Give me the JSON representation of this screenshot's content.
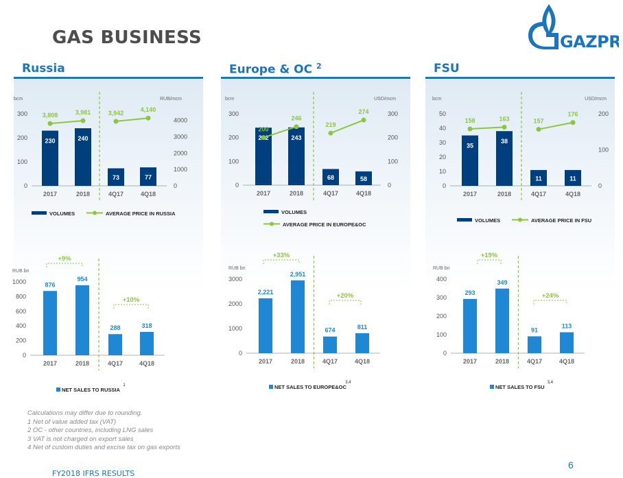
{
  "page": {
    "title": "GAS BUSINESS",
    "logo_text": "GAZPROM",
    "page_number": "6",
    "footer_title": "FY2018 IFRS RESULTS",
    "notes": [
      "Calculations may differ due to rounding.",
      "1 Net of value added tax (VAT)",
      "2 OC - other countries, including LNG sales",
      "3 VAT is not charged on export sales",
      "4 Net of custom duties and excise tax on gas exports"
    ]
  },
  "colors": {
    "accent": "#1a75bc",
    "dark_bar": "#003f7d",
    "light_bar": "#1f87d4",
    "green": "#8cc63f"
  },
  "sections": [
    {
      "header": "Russia",
      "header_sup": ""
    },
    {
      "header": "Europe & OC",
      "header_sup": "2"
    },
    {
      "header": "FSU",
      "header_sup": ""
    }
  ],
  "chart_data": [
    {
      "type": "bar",
      "region": "Russia",
      "categories": [
        "2017",
        "2018",
        "4Q17",
        "4Q18"
      ],
      "ylabel": "bcm",
      "y2label": "RUB/mcm",
      "yticks": [
        "0",
        "100",
        "200",
        "300"
      ],
      "ylim": [
        0,
        300
      ],
      "y2ticks": [
        "0",
        "1000",
        "2000",
        "3000",
        "4000"
      ],
      "y2lim": [
        0,
        4400
      ],
      "series": [
        {
          "name": "VOLUMES",
          "values": [
            230,
            240,
            73,
            77
          ],
          "labels": [
            "230",
            "240",
            "73",
            "77"
          ]
        },
        {
          "name": "AVERAGE PRICE IN RUSSIA",
          "type": "line",
          "values": [
            3808,
            3981,
            3942,
            4140
          ],
          "labels": [
            "3,808",
            "3,981",
            "3,942",
            "4,140"
          ]
        }
      ]
    },
    {
      "type": "bar",
      "region": "Europe & OC",
      "categories": [
        "2017",
        "2018",
        "4Q17",
        "4Q18"
      ],
      "ylabel": "bcm",
      "y2label": "USD/mcm",
      "yticks": [
        "0",
        "100",
        "200",
        "300"
      ],
      "ylim": [
        0,
        300
      ],
      "y2ticks": [
        "0",
        "100",
        "200",
        "300"
      ],
      "y2lim": [
        0,
        300
      ],
      "series": [
        {
          "name": "VOLUMES",
          "values": [
            242,
            243,
            68,
            58
          ],
          "labels": [
            "242",
            "243",
            "68",
            "58"
          ]
        },
        {
          "name": "AVERAGE PRICE IN EUROPE&OC",
          "type": "line",
          "values": [
            200,
            246,
            219,
            274
          ],
          "labels": [
            "200",
            "246",
            "219",
            "274"
          ]
        }
      ]
    },
    {
      "type": "bar",
      "region": "FSU",
      "categories": [
        "2017",
        "2018",
        "4Q17",
        "4Q18"
      ],
      "ylabel": "bcm",
      "y2label": "USD/mcm",
      "yticks": [
        "0",
        "10",
        "20",
        "30",
        "40",
        "50"
      ],
      "ylim": [
        0,
        50
      ],
      "y2ticks": [
        "0",
        "100",
        "200"
      ],
      "y2lim": [
        0,
        200
      ],
      "series": [
        {
          "name": "VOLUMES",
          "values": [
            35,
            38,
            11,
            11
          ],
          "labels": [
            "35",
            "38",
            "11",
            "11"
          ]
        },
        {
          "name": "AVERAGE PRICE IN FSU",
          "type": "line",
          "values": [
            158,
            163,
            157,
            176
          ],
          "labels": [
            "158",
            "163",
            "157",
            "176"
          ]
        }
      ]
    },
    {
      "type": "bar",
      "region": "Russia",
      "categories": [
        "2017",
        "2018",
        "4Q17",
        "4Q18"
      ],
      "ylabel": "RUB bn",
      "yticks": [
        "0",
        "200",
        "400",
        "600",
        "800",
        "1000"
      ],
      "ylim": [
        0,
        1000
      ],
      "series": [
        {
          "name": "NET SALES TO RUSSIA",
          "values": [
            876,
            954,
            288,
            318
          ],
          "labels": [
            "876",
            "954",
            "288",
            "318"
          ]
        }
      ],
      "legend_sup": "1",
      "annotations": [
        "+9%",
        "+10%"
      ]
    },
    {
      "type": "bar",
      "region": "Europe & OC",
      "categories": [
        "2017",
        "2018",
        "4Q17",
        "4Q18"
      ],
      "ylabel": "RUB bn",
      "yticks": [
        "0",
        "1000",
        "2000",
        "3000"
      ],
      "ylim": [
        0,
        3000
      ],
      "series": [
        {
          "name": "NET SALES TO EUROPE&OC",
          "values": [
            2221,
            2951,
            674,
            811
          ],
          "labels": [
            "2,221",
            "2,951",
            "674",
            "811"
          ]
        }
      ],
      "legend_sup": "3,4",
      "annotations": [
        "+33%",
        "+20%"
      ]
    },
    {
      "type": "bar",
      "region": "FSU",
      "categories": [
        "2017",
        "2018",
        "4Q17",
        "4Q18"
      ],
      "ylabel": "RUB bn",
      "yticks": [
        "0",
        "100",
        "200",
        "300",
        "400"
      ],
      "ylim": [
        0,
        400
      ],
      "series": [
        {
          "name": "NET SALES TO FSU",
          "values": [
            293,
            349,
            91,
            113
          ],
          "labels": [
            "293",
            "349",
            "91",
            "113"
          ]
        }
      ],
      "legend_sup": "3,4",
      "annotations": [
        "+19%",
        "+24%"
      ]
    }
  ]
}
